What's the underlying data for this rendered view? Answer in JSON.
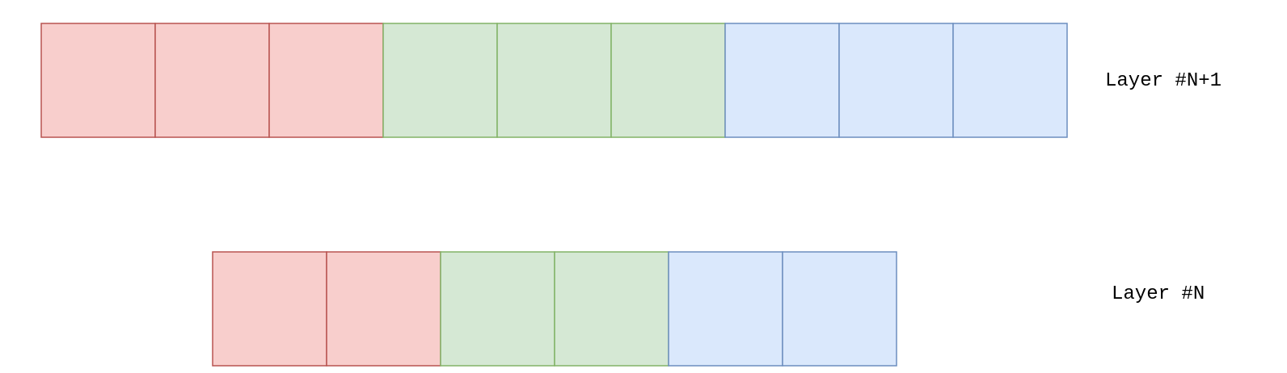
{
  "diagram": {
    "colors": {
      "red": {
        "fill": "#f8cecc",
        "stroke": "#b85450"
      },
      "green": {
        "fill": "#d5e8d4",
        "stroke": "#82b366"
      },
      "blue": {
        "fill": "#dae8fc",
        "stroke": "#6c8ebf"
      }
    },
    "layers": [
      {
        "label": "Layer #N+1",
        "cells": [
          "red",
          "red",
          "red",
          "green",
          "green",
          "green",
          "blue",
          "blue",
          "blue"
        ]
      },
      {
        "label": "Layer #N",
        "cells": [
          "red",
          "red",
          "green",
          "green",
          "blue",
          "blue"
        ]
      }
    ]
  }
}
